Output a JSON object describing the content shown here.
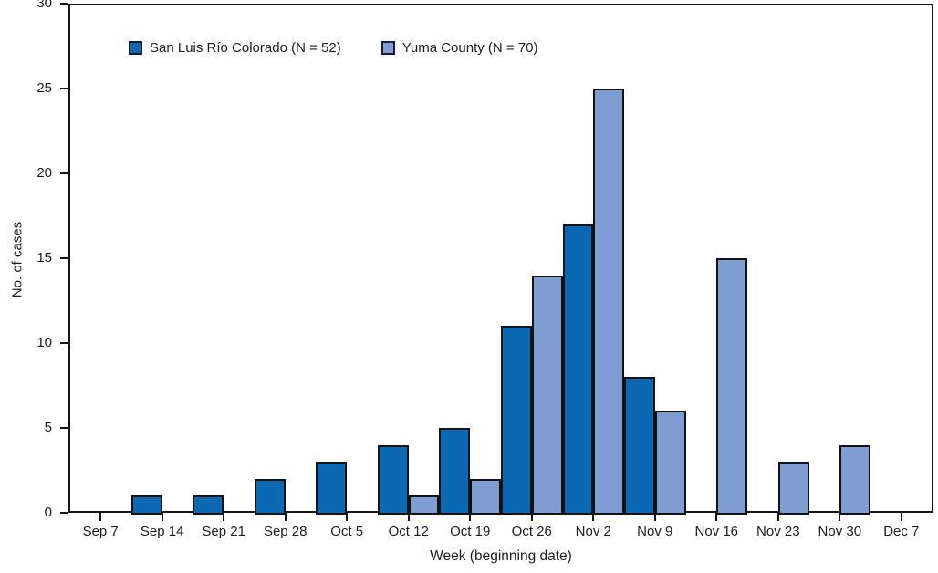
{
  "figure": {
    "background": "#ffffff",
    "axis_color": "#161616",
    "text_color": "#1d1d1f"
  },
  "chart_data": {
    "type": "bar",
    "title": "",
    "xlabel": "Week (beginning date)",
    "ylabel": "No. of cases",
    "ylim": [
      0,
      30
    ],
    "yticks": [
      0,
      5,
      10,
      15,
      20,
      25,
      30
    ],
    "grid": false,
    "legend_position": "top-left",
    "bar_layout": "grouped-pair-centered-on-tick",
    "categories": [
      "Sep 7",
      "Sep 14",
      "Sep 21",
      "Sep 28",
      "Oct 5",
      "Oct 12",
      "Oct 19",
      "Oct 26",
      "Nov 2",
      "Nov 9",
      "Nov 16",
      "Nov 23",
      "Nov 30",
      "Dec 7"
    ],
    "series": [
      {
        "name": "San Luis Río Colorado (N = 52)",
        "color": "#0b68b2",
        "border_color": "#121212",
        "values": [
          0,
          1,
          1,
          2,
          3,
          4,
          5,
          11,
          17,
          8,
          0,
          0,
          0,
          0
        ]
      },
      {
        "name": "Yuma County (N = 70)",
        "color": "#7f9dd3",
        "border_color": "#121212",
        "values": [
          0,
          0,
          0,
          0,
          0,
          1,
          2,
          14,
          25,
          6,
          15,
          3,
          4,
          0
        ]
      }
    ]
  }
}
